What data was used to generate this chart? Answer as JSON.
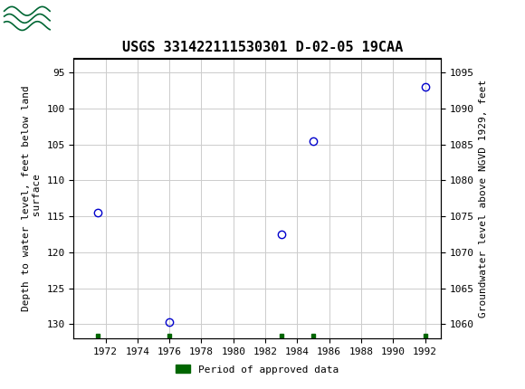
{
  "title": "USGS 331422111530301 D-02-05 19CAA",
  "ylabel_left": "Depth to water level, feet below land\n surface",
  "ylabel_right": "Groundwater level above NGVD 1929, feet",
  "header_color": "#006633",
  "background_color": "#ffffff",
  "plot_background": "#ffffff",
  "grid_color": "#cccccc",
  "data_points": [
    {
      "year": 1971.5,
      "depth": 114.5
    },
    {
      "year": 1976.0,
      "depth": 129.7
    },
    {
      "year": 1983.0,
      "depth": 117.5
    },
    {
      "year": 1985.0,
      "depth": 104.5
    },
    {
      "year": 1992.0,
      "depth": 97.0
    }
  ],
  "approved_years": [
    1971.5,
    1976.0,
    1983.0,
    1985.0,
    1992.0
  ],
  "marker_color": "#0000cc",
  "marker_size": 6,
  "approved_color": "#006600",
  "xlim": [
    1970,
    1993
  ],
  "ylim_left_top": 93,
  "ylim_left_bottom": 132,
  "ylim_right_top": 1097,
  "ylim_right_bottom": 1058,
  "xticks": [
    1972,
    1974,
    1976,
    1978,
    1980,
    1982,
    1984,
    1986,
    1988,
    1990,
    1992
  ],
  "yticks_left": [
    95,
    100,
    105,
    110,
    115,
    120,
    125,
    130
  ],
  "yticks_right": [
    1095,
    1090,
    1085,
    1080,
    1075,
    1070,
    1065,
    1060
  ],
  "font_family": "monospace",
  "title_fontsize": 11,
  "axis_label_fontsize": 8,
  "tick_fontsize": 8,
  "legend_label": "Period of approved data",
  "legend_color": "#006600"
}
